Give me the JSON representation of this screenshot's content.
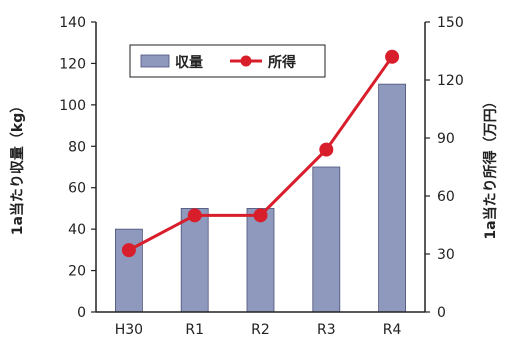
{
  "chart_data": {
    "type": "bar",
    "categories": [
      "H30",
      "R1",
      "R2",
      "R3",
      "R4"
    ],
    "series": [
      {
        "name": "収量",
        "type": "bar",
        "axis": "left",
        "values": [
          40,
          50,
          50,
          70,
          110
        ],
        "color": "#8f98bd"
      },
      {
        "name": "所得",
        "type": "line",
        "axis": "right",
        "values": [
          32,
          50,
          50,
          84,
          132
        ],
        "color": "#d81e2b"
      }
    ],
    "ylabel": "1a当たり収量（kg）",
    "y2label": "1a当たり所得（万円）",
    "ylim": [
      0,
      140
    ],
    "y2lim": [
      0,
      150
    ],
    "yticks": [
      "0",
      "20",
      "40",
      "60",
      "80",
      "100",
      "120",
      "140"
    ],
    "y2ticks": [
      "0",
      "30",
      "60",
      "90",
      "120",
      "150"
    ],
    "legend_position": "top-left",
    "grid": false
  }
}
